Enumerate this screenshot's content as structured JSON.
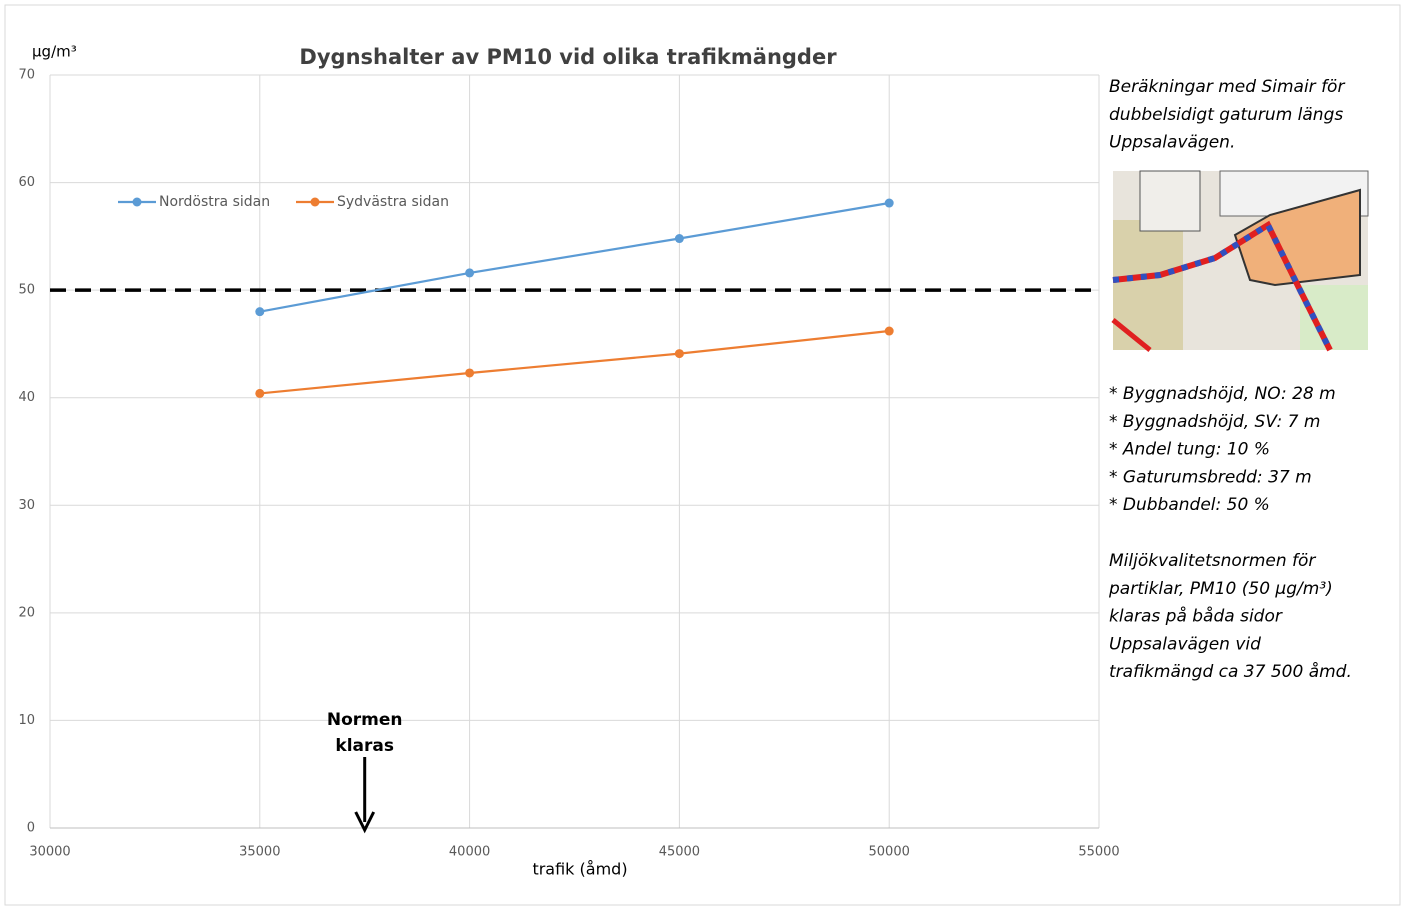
{
  "chart_data": {
    "type": "line",
    "title": "Dygnshalter av PM10 vid olika trafikmängder",
    "y_label": "µg/m³",
    "x_label": "trafik (åmd)",
    "x": [
      35000,
      40000,
      45000,
      50000
    ],
    "series": [
      {
        "name": "Nordöstra sidan",
        "color": "#5b9bd5",
        "values": [
          48.0,
          51.6,
          54.8,
          58.1
        ]
      },
      {
        "name": "Sydvästra sidan",
        "color": "#ed7d31",
        "values": [
          40.4,
          42.3,
          44.1,
          46.2
        ]
      }
    ],
    "threshold": 50,
    "annotation": {
      "lines": [
        "Normen",
        "klaras"
      ],
      "x": 37500
    },
    "xlim": [
      30000,
      55000
    ],
    "xticks": [
      30000,
      35000,
      40000,
      45000,
      50000,
      55000
    ],
    "ylim": [
      0,
      70
    ],
    "yticks": [
      0,
      10,
      20,
      30,
      40,
      50,
      60,
      70
    ],
    "grid": true,
    "legend": "top-left"
  },
  "side_panel": {
    "intro": [
      "Beräkningar med Simair för",
      "dubbelsidigt gaturum längs",
      "Uppsalavägen."
    ],
    "bullets": [
      "* Byggnadshöjd, NO: 28 m",
      "* Byggnadshöjd, SV: 7 m",
      "* Andel tung: 10 %",
      "* Gaturumsbredd: 37 m",
      "* Dubbandel: 50 %"
    ],
    "conclusion": [
      "Miljökvalitetsnormen för",
      "partiklar, PM10 (50 µg/m³)",
      "klaras på båda sidor",
      "Uppsalavägen vid",
      "trafikmängd ca 37 500 åmd."
    ]
  }
}
